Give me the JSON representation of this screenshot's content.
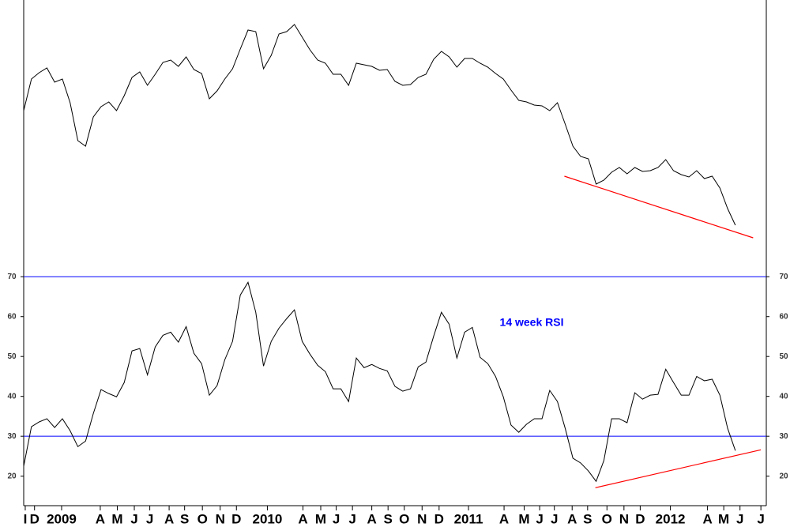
{
  "chart_data": [
    {
      "type": "line",
      "color": "#000000",
      "x": [
        0,
        1,
        2,
        3,
        4,
        5,
        6,
        7,
        8,
        9,
        10,
        11,
        12,
        13,
        14,
        15,
        16,
        17,
        18,
        19,
        20,
        21,
        22,
        23,
        24,
        25,
        26,
        27,
        28,
        29,
        30,
        31,
        32,
        33,
        34,
        35,
        36,
        37,
        38,
        39,
        40,
        41,
        42,
        43,
        44,
        45,
        46,
        47,
        48,
        49,
        50,
        51,
        52,
        53,
        54,
        55,
        56,
        57,
        58,
        59,
        60,
        61,
        62,
        63,
        64,
        65,
        66,
        67,
        68,
        69,
        70,
        71,
        72,
        73,
        74,
        75,
        76,
        77,
        78,
        79,
        80,
        81,
        82,
        83,
        84,
        85,
        86,
        87,
        88,
        89,
        90,
        91,
        92
      ],
      "values": [
        185,
        225,
        233,
        239,
        221,
        225,
        195,
        147,
        140,
        177,
        190,
        196,
        185,
        204,
        227,
        234,
        217,
        231,
        246,
        249,
        241,
        253,
        237,
        232,
        200,
        210,
        225,
        238,
        263,
        287,
        285,
        238,
        255,
        282,
        285,
        294,
        278,
        262,
        249,
        245,
        231,
        231,
        217,
        245,
        243,
        241,
        236,
        237,
        222,
        217,
        218,
        227,
        231,
        250,
        260,
        253,
        240,
        251,
        251,
        245,
        240,
        232,
        225,
        211,
        198,
        196,
        192,
        191,
        185,
        195,
        168,
        140,
        127,
        124,
        92,
        97,
        107,
        113,
        105,
        113,
        108,
        109,
        113,
        123,
        109,
        104,
        101,
        109,
        99,
        102,
        87,
        61,
        40
      ],
      "xlim": [
        0,
        96
      ],
      "ylim": [
        0,
        325
      ],
      "trendlines": [
        {
          "x": [
            69.9,
            94.3
          ],
          "y": [
            102,
            24
          ],
          "color": "#ff0000"
        }
      ]
    },
    {
      "type": "line",
      "color": "#000000",
      "annotation": "14 week RSI",
      "x": [
        0,
        1,
        2,
        3,
        4,
        5,
        6,
        7,
        8,
        9,
        10,
        11,
        12,
        13,
        14,
        15,
        16,
        17,
        18,
        19,
        20,
        21,
        22,
        23,
        24,
        25,
        26,
        27,
        28,
        29,
        30,
        31,
        32,
        33,
        34,
        35,
        36,
        37,
        38,
        39,
        40,
        41,
        42,
        43,
        44,
        45,
        46,
        47,
        48,
        49,
        50,
        51,
        52,
        53,
        54,
        55,
        56,
        57,
        58,
        59,
        60,
        61,
        62,
        63,
        64,
        65,
        66,
        67,
        68,
        69,
        70,
        71,
        72,
        73,
        74,
        75,
        76,
        77,
        78,
        79,
        80,
        81,
        82,
        83,
        84,
        85,
        86,
        87,
        88,
        89,
        90,
        91,
        92
      ],
      "values": [
        22.5,
        32.4,
        33.6,
        34.4,
        32.2,
        34.4,
        31.4,
        27.4,
        28.8,
        35.7,
        41.7,
        40.7,
        39.9,
        43.5,
        51.4,
        52.0,
        45.4,
        52.4,
        55.3,
        56.1,
        53.6,
        57.5,
        50.8,
        48.2,
        40.3,
        42.7,
        49.2,
        53.8,
        65.4,
        68.6,
        61.1,
        47.6,
        53.8,
        57.1,
        59.5,
        61.7,
        53.8,
        50.6,
        47.8,
        46.2,
        41.9,
        41.9,
        38.7,
        49.6,
        47.2,
        48.0,
        47.0,
        46.4,
        42.5,
        41.3,
        41.9,
        47.4,
        48.6,
        55.1,
        61.1,
        58.1,
        49.6,
        56.1,
        57.3,
        49.8,
        48.2,
        45.0,
        39.9,
        32.8,
        31.0,
        33.0,
        34.4,
        34.4,
        41.5,
        38.7,
        32.0,
        24.5,
        23.3,
        21.3,
        18.7,
        23.9,
        34.4,
        34.4,
        33.4,
        40.9,
        39.3,
        40.3,
        40.5,
        46.8,
        43.5,
        40.3,
        40.3,
        45.0,
        43.9,
        44.3,
        40.3,
        32.0,
        26.4
      ],
      "xlim": [
        0,
        96
      ],
      "ylim": [
        12.6,
        75
      ],
      "yticks": [
        20,
        30,
        40,
        50,
        60,
        70
      ],
      "hlines": [
        70,
        30
      ],
      "hline_color": "#0000ff",
      "trendlines": [
        {
          "x": [
            73.9,
            95.3
          ],
          "y": [
            17.1,
            26.6
          ],
          "color": "#ff0000"
        }
      ],
      "xticks": [
        {
          "value": 0.2,
          "label": "I"
        },
        {
          "value": 1.4,
          "label": "D"
        },
        {
          "value": 4.9,
          "label": "2009"
        },
        {
          "value": 9.9,
          "label": "A"
        },
        {
          "value": 12.1,
          "label": "M"
        },
        {
          "value": 14.3,
          "label": "J"
        },
        {
          "value": 16.3,
          "label": "J"
        },
        {
          "value": 18.8,
          "label": "A"
        },
        {
          "value": 20.8,
          "label": "S"
        },
        {
          "value": 23.1,
          "label": "O"
        },
        {
          "value": 25.4,
          "label": "N"
        },
        {
          "value": 27.5,
          "label": "D"
        },
        {
          "value": 31.5,
          "label": "2010"
        },
        {
          "value": 36.1,
          "label": "A"
        },
        {
          "value": 38.4,
          "label": "M"
        },
        {
          "value": 40.4,
          "label": "J"
        },
        {
          "value": 42.5,
          "label": "J"
        },
        {
          "value": 45.0,
          "label": "A"
        },
        {
          "value": 47.1,
          "label": "S"
        },
        {
          "value": 49.2,
          "label": "O"
        },
        {
          "value": 51.5,
          "label": "N"
        },
        {
          "value": 53.7,
          "label": "D"
        },
        {
          "value": 57.5,
          "label": "2011"
        },
        {
          "value": 62.1,
          "label": "A"
        },
        {
          "value": 64.7,
          "label": "M"
        },
        {
          "value": 66.7,
          "label": "J"
        },
        {
          "value": 68.6,
          "label": "J"
        },
        {
          "value": 70.9,
          "label": "A"
        },
        {
          "value": 72.9,
          "label": "S"
        },
        {
          "value": 75.4,
          "label": "O"
        },
        {
          "value": 77.6,
          "label": "N"
        },
        {
          "value": 79.7,
          "label": "D"
        },
        {
          "value": 83.6,
          "label": "2012"
        },
        {
          "value": 88.4,
          "label": "A"
        },
        {
          "value": 90.5,
          "label": "M"
        },
        {
          "value": 92.6,
          "label": "J"
        },
        {
          "value": 95.3,
          "label": "J"
        }
      ]
    }
  ]
}
